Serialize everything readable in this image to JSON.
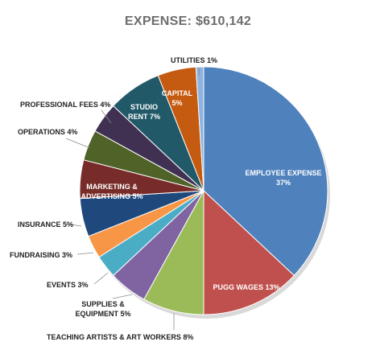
{
  "chart_data": {
    "type": "pie",
    "title": "EXPENSE:  $610,142",
    "slices": [
      {
        "name": "EMPLOYEE EXPENSE",
        "value": 37,
        "label": "37%",
        "color": "#4f81bd"
      },
      {
        "name": "PUGG WAGES",
        "value": 13,
        "label": "13%",
        "color": "#c0504d"
      },
      {
        "name": "TEACHING ARTISTS & ART WORKERS",
        "value": 8,
        "label": "8%",
        "color": "#9bbb59"
      },
      {
        "name": "SUPPLIES & EQUIPMENT",
        "value": 5,
        "label": "5%",
        "color": "#8064a2"
      },
      {
        "name": "EVENTS",
        "value": 3,
        "label": "3%",
        "color": "#4bacc6"
      },
      {
        "name": "FUNDRAISING",
        "value": 3,
        "label": "3%",
        "color": "#f79646"
      },
      {
        "name": "INSURANCE",
        "value": 5,
        "label": "5%",
        "color": "#1f497d"
      },
      {
        "name": "MARKETING & ADVERTISING",
        "value": 5,
        "label": "5%",
        "color": "#772c2a"
      },
      {
        "name": "OPERATIONS",
        "value": 4,
        "label": "4%",
        "color": "#4f6228"
      },
      {
        "name": "PROFESSIONAL FEES",
        "value": 4,
        "label": "4%",
        "color": "#403152"
      },
      {
        "name": "STUDIO RENT",
        "value": 7,
        "label": "7%",
        "color": "#215968"
      },
      {
        "name": "CAPITAL",
        "value": 5,
        "label": "5%",
        "color": "#c55a11"
      },
      {
        "name": "UTILITIES",
        "value": 1,
        "label": "1%",
        "color": "#8db3e2"
      }
    ]
  }
}
